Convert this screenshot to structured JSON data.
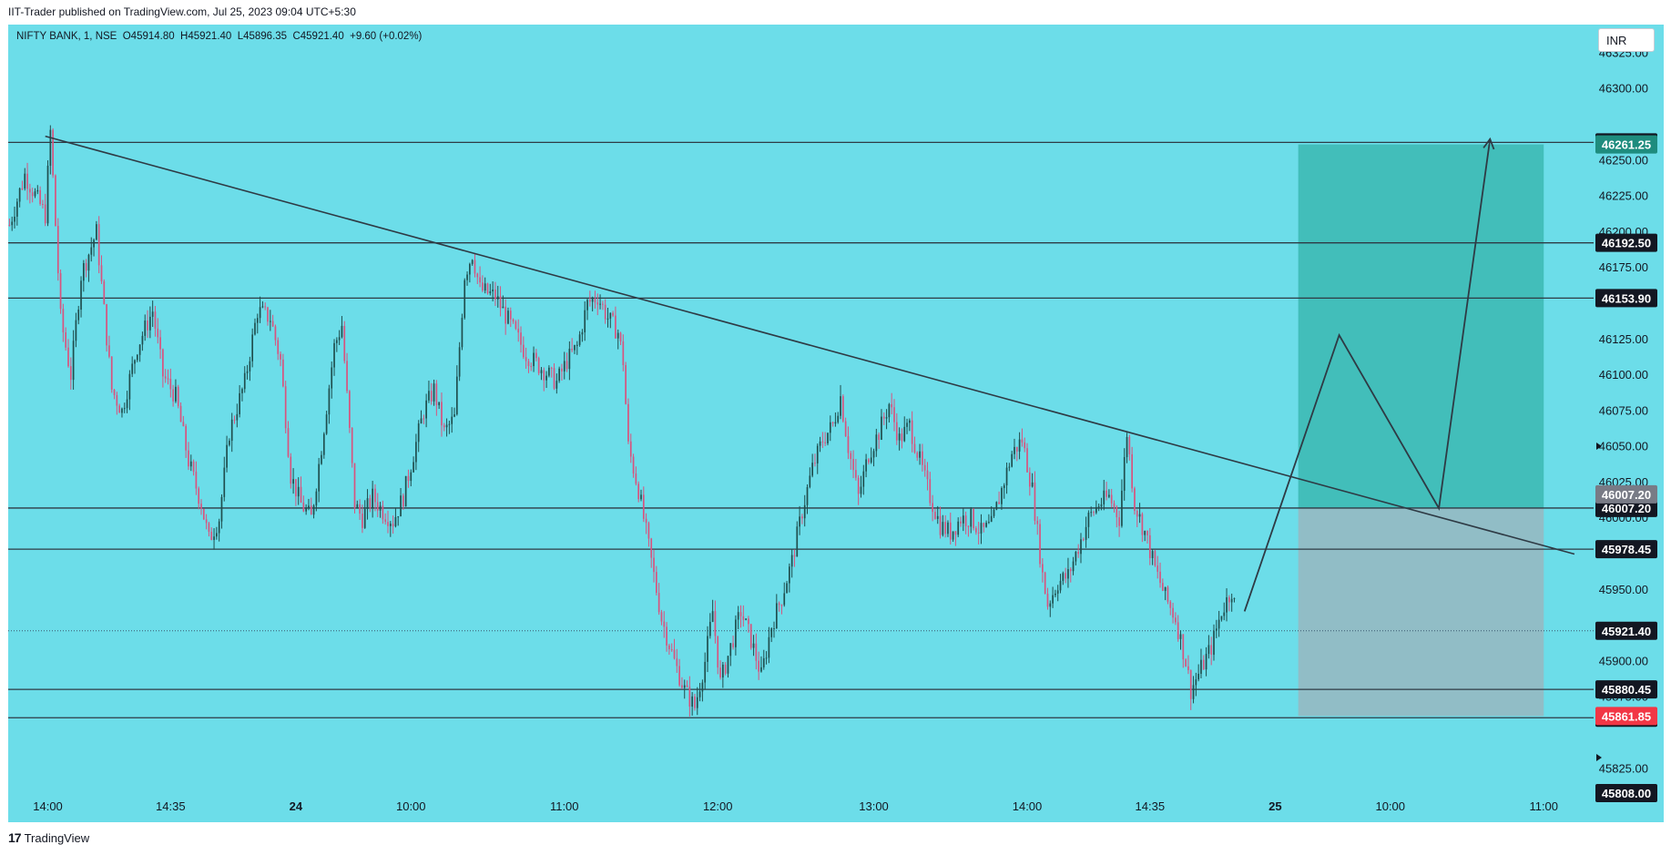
{
  "header": {
    "published_by": "IIT-Trader published on TradingView.com, Jul 25, 2023 09:04 UTC+5:30",
    "symbol_line": "NIFTY BANK, 1, NSE  O45914.80  H45921.40  L45896.35  C45921.40  +9.60 (+0.02%)",
    "currency": "INR"
  },
  "footer": {
    "brand": "TradingView",
    "logo": "17"
  },
  "colors": {
    "background": "#6cdde9",
    "up": "#1f4e4e",
    "down": "#d8537e",
    "target_zone": "#3bb9b2",
    "stop_zone": "#96b9c2",
    "line": "#2e3a44"
  },
  "chart_data": {
    "type": "candlestick",
    "symbol": "NIFTY BANK",
    "interval": "1",
    "exchange": "NSE",
    "ylim": [
      45815,
      46345
    ],
    "y_ticks": [
      46325,
      46300,
      46250,
      46225,
      46200,
      46175,
      46125,
      46100,
      46075,
      46050,
      46025,
      46000,
      45950,
      45900,
      45875,
      45825
    ],
    "y_tick_labels": [
      "46325.00",
      "46300.00",
      "46250.00",
      "46225.00",
      "46200.00",
      "46175.00",
      "46125.00",
      "46100.00",
      "46075.00",
      "46050.00",
      "46025.00",
      "46000.00",
      "45950.00",
      "45900.00",
      "45875.00",
      "45825.00"
    ],
    "x_ticks": [
      "14:00",
      "14:35",
      "24",
      "10:00",
      "11:00",
      "12:00",
      "13:00",
      "14:00",
      "14:35",
      "25",
      "10:00",
      "11:00"
    ],
    "x_tick_index": [
      15,
      63,
      112,
      157,
      217,
      277,
      338,
      398,
      446,
      495,
      540,
      600
    ],
    "total_slots": 620,
    "last_index": 479,
    "close_path": [
      [
        0,
        46205
      ],
      [
        6,
        46240
      ],
      [
        14,
        46212
      ],
      [
        16,
        46270
      ],
      [
        20,
        46140
      ],
      [
        24,
        46100
      ],
      [
        28,
        46170
      ],
      [
        34,
        46200
      ],
      [
        40,
        46090
      ],
      [
        44,
        46075
      ],
      [
        50,
        46120
      ],
      [
        56,
        46145
      ],
      [
        60,
        46100
      ],
      [
        65,
        46085
      ],
      [
        70,
        46040
      ],
      [
        75,
        46010
      ],
      [
        78,
        45985
      ],
      [
        82,
        46000
      ],
      [
        86,
        46060
      ],
      [
        92,
        46095
      ],
      [
        97,
        46145
      ],
      [
        102,
        46140
      ],
      [
        106,
        46110
      ],
      [
        110,
        46030
      ],
      [
        114,
        46010
      ],
      [
        118,
        46000
      ],
      [
        122,
        46050
      ],
      [
        127,
        46120
      ],
      [
        130,
        46135
      ],
      [
        132,
        46085
      ],
      [
        135,
        46010
      ],
      [
        138,
        46000
      ],
      [
        142,
        46015
      ],
      [
        146,
        46005
      ],
      [
        150,
        45998
      ],
      [
        154,
        46015
      ],
      [
        158,
        46045
      ],
      [
        162,
        46075
      ],
      [
        166,
        46090
      ],
      [
        170,
        46060
      ],
      [
        174,
        46070
      ],
      [
        178,
        46170
      ],
      [
        181,
        46185
      ],
      [
        184,
        46160
      ],
      [
        190,
        46155
      ],
      [
        196,
        46135
      ],
      [
        202,
        46115
      ],
      [
        208,
        46105
      ],
      [
        214,
        46095
      ],
      [
        218,
        46110
      ],
      [
        222,
        46120
      ],
      [
        226,
        46150
      ],
      [
        230,
        46155
      ],
      [
        234,
        46140
      ],
      [
        238,
        46130
      ],
      [
        240,
        46110
      ],
      [
        242,
        46050
      ],
      [
        246,
        46020
      ],
      [
        250,
        45980
      ],
      [
        255,
        45930
      ],
      [
        260,
        45900
      ],
      [
        264,
        45880
      ],
      [
        268,
        45868
      ],
      [
        272,
        45900
      ],
      [
        275,
        45935
      ],
      [
        278,
        45885
      ],
      [
        282,
        45910
      ],
      [
        286,
        45935
      ],
      [
        290,
        45915
      ],
      [
        294,
        45890
      ],
      [
        298,
        45925
      ],
      [
        302,
        45945
      ],
      [
        306,
        45970
      ],
      [
        310,
        46005
      ],
      [
        314,
        46035
      ],
      [
        318,
        46055
      ],
      [
        322,
        46065
      ],
      [
        325,
        46085
      ],
      [
        328,
        46050
      ],
      [
        332,
        46015
      ],
      [
        336,
        46045
      ],
      [
        340,
        46060
      ],
      [
        344,
        46080
      ],
      [
        348,
        46055
      ],
      [
        352,
        46065
      ],
      [
        356,
        46040
      ],
      [
        360,
        46015
      ],
      [
        364,
        45995
      ],
      [
        368,
        45990
      ],
      [
        372,
        46000
      ],
      [
        376,
        46000
      ],
      [
        380,
        45990
      ],
      [
        384,
        45995
      ],
      [
        388,
        46020
      ],
      [
        392,
        46045
      ],
      [
        396,
        46055
      ],
      [
        400,
        46020
      ],
      [
        402,
        45990
      ],
      [
        404,
        45960
      ],
      [
        406,
        45940
      ],
      [
        410,
        45955
      ],
      [
        414,
        45960
      ],
      [
        418,
        45980
      ],
      [
        422,
        46000
      ],
      [
        426,
        46010
      ],
      [
        430,
        46015
      ],
      [
        434,
        46000
      ],
      [
        437,
        46060
      ],
      [
        440,
        46010
      ],
      [
        444,
        45990
      ],
      [
        448,
        45965
      ],
      [
        452,
        45945
      ],
      [
        456,
        45930
      ],
      [
        460,
        45900
      ],
      [
        462,
        45880
      ],
      [
        466,
        45895
      ],
      [
        470,
        45910
      ],
      [
        474,
        45935
      ],
      [
        478,
        45950
      ],
      [
        481,
        45921
      ]
    ],
    "horizontal_lines": [
      {
        "price": 46262.7,
        "label": "46262.70",
        "color": "#131722"
      },
      {
        "price": 46192.5,
        "label": "46192.50",
        "color": "#131722"
      },
      {
        "price": 46153.9,
        "label": "46153.90",
        "color": "#131722"
      },
      {
        "price": 46007.2,
        "label": "46007.20",
        "color": "#131722"
      },
      {
        "price": 45978.45,
        "label": "45978.45",
        "color": "#131722"
      },
      {
        "price": 45880.45,
        "label": "45880.45",
        "color": "#131722"
      },
      {
        "price": 45860.65,
        "label": "45860.65",
        "color": "#131722"
      }
    ],
    "price_labels": [
      {
        "price": 46261.25,
        "label": "46261.25",
        "color": "#1e8c7e"
      },
      {
        "price": 46007.2,
        "label": "46007.20",
        "color": "#787b86",
        "offset": -15
      },
      {
        "price": 45921.4,
        "label": "45921.40",
        "color": "#131722"
      },
      {
        "price": 45861.85,
        "label": "45861.85",
        "color": "#f23645"
      },
      {
        "price": 45808.0,
        "label": "45808.00",
        "color": "#131722"
      }
    ],
    "current_price": 45921.4,
    "trendline": {
      "from": [
        14,
        46267
      ],
      "to": [
        612,
        45975
      ]
    },
    "position": {
      "entry": 46007.2,
      "target": 46261.25,
      "stop": 45861.85,
      "start_index": 504,
      "end_index": 600
    },
    "projection": [
      [
        483,
        45935
      ],
      [
        520,
        46128
      ],
      [
        559,
        46007
      ],
      [
        579,
        46265
      ]
    ]
  }
}
